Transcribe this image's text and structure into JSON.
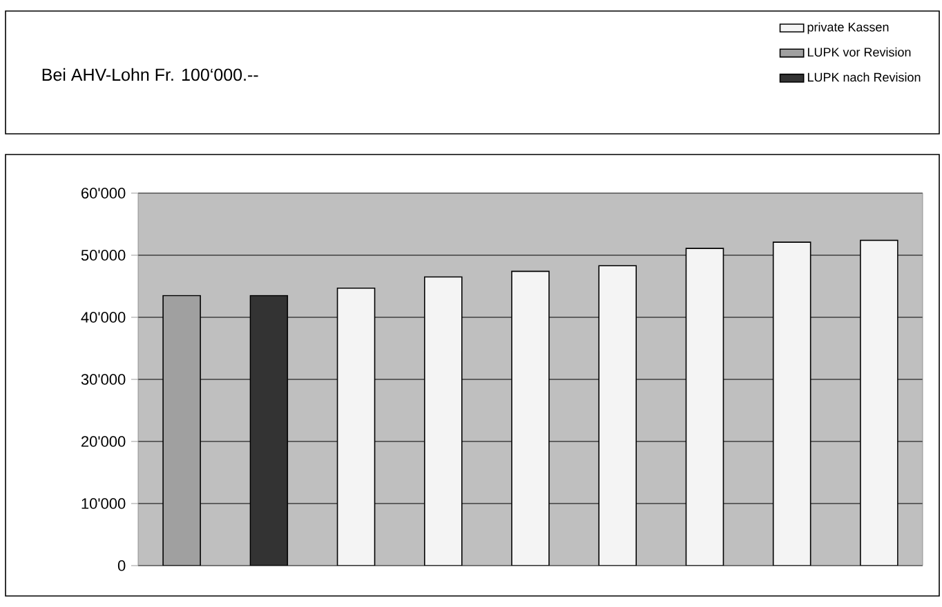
{
  "chart_data": {
    "type": "bar",
    "title": "Bei AHV-Lohn Fr. 100‘000.--",
    "categories": [
      null,
      null,
      null,
      null,
      null,
      null,
      null,
      null,
      null
    ],
    "series": [
      {
        "name": "private Kassen",
        "color": "#f4f4f4",
        "values": [
          null,
          null,
          44700,
          46500,
          47400,
          48300,
          51100,
          52100,
          52400
        ]
      },
      {
        "name": "LUPK vor Revision",
        "color": "#a0a0a0",
        "values": [
          43500,
          null,
          null,
          null,
          null,
          null,
          null,
          null,
          null
        ]
      },
      {
        "name": "LUPK nach Revision",
        "color": "#333333",
        "values": [
          null,
          43500,
          null,
          null,
          null,
          null,
          null,
          null,
          null
        ]
      }
    ],
    "ylim": [
      0,
      60000
    ],
    "yticks": [
      0,
      {
        "value": 10000,
        "label": "10'000"
      },
      {
        "value": 20000,
        "label": "20'000"
      },
      {
        "value": 30000,
        "label": "30'000"
      },
      {
        "value": 40000,
        "label": "40'000"
      },
      {
        "value": 50000,
        "label": "50'000"
      },
      {
        "value": 60000,
        "label": "60'000"
      }
    ],
    "grid": "y",
    "legend": "top right"
  }
}
